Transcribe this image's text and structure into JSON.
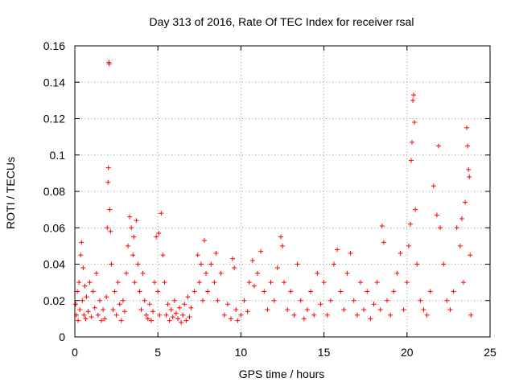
{
  "chart_data": {
    "type": "scatter",
    "title": "Day 313 of 2016, Rate Of TEC Index for receiver rsal",
    "xlabel": "GPS time / hours",
    "ylabel": "ROTI / TECUs",
    "xlim": [
      0,
      25
    ],
    "ylim": [
      0,
      0.16
    ],
    "xticks": [
      0,
      5,
      10,
      15,
      20,
      25
    ],
    "xtick_labels": [
      "0",
      "5",
      "10",
      "15",
      "20",
      "25"
    ],
    "yticks": [
      0,
      0.02,
      0.04,
      0.06,
      0.08,
      0.1,
      0.12,
      0.14,
      0.16
    ],
    "ytick_labels": [
      "0",
      "0.02",
      "0.04",
      "0.06",
      "0.08",
      "0.1",
      "0.12",
      "0.14",
      "0.16"
    ],
    "grid": true,
    "marker": "+",
    "color": "#ff0000",
    "series": [
      {
        "name": "ROTI",
        "points": [
          [
            0.05,
            0.018
          ],
          [
            0.1,
            0.012
          ],
          [
            0.15,
            0.025
          ],
          [
            0.2,
            0.009
          ],
          [
            0.25,
            0.03
          ],
          [
            0.3,
            0.015
          ],
          [
            0.35,
            0.045
          ],
          [
            0.4,
            0.052
          ],
          [
            0.45,
            0.02
          ],
          [
            0.5,
            0.038
          ],
          [
            0.55,
            0.012
          ],
          [
            0.6,
            0.028
          ],
          [
            0.65,
            0.01
          ],
          [
            0.7,
            0.022
          ],
          [
            0.8,
            0.014
          ],
          [
            0.9,
            0.03
          ],
          [
            1.0,
            0.011
          ],
          [
            1.1,
            0.025
          ],
          [
            1.2,
            0.016
          ],
          [
            1.3,
            0.035
          ],
          [
            1.4,
            0.012
          ],
          [
            1.5,
            0.02
          ],
          [
            1.6,
            0.009
          ],
          [
            1.7,
            0.015
          ],
          [
            1.8,
            0.01
          ],
          [
            1.9,
            0.022
          ],
          [
            1.95,
            0.06
          ],
          [
            2.0,
            0.085
          ],
          [
            2.02,
            0.093
          ],
          [
            2.05,
            0.151
          ],
          [
            2.07,
            0.15
          ],
          [
            2.1,
            0.07
          ],
          [
            2.15,
            0.058
          ],
          [
            2.2,
            0.04
          ],
          [
            2.3,
            0.015
          ],
          [
            2.4,
            0.025
          ],
          [
            2.5,
            0.012
          ],
          [
            2.6,
            0.03
          ],
          [
            2.7,
            0.018
          ],
          [
            2.8,
            0.009
          ],
          [
            2.9,
            0.02
          ],
          [
            3.0,
            0.014
          ],
          [
            3.1,
            0.035
          ],
          [
            3.2,
            0.05
          ],
          [
            3.3,
            0.066
          ],
          [
            3.4,
            0.06
          ],
          [
            3.5,
            0.045
          ],
          [
            3.55,
            0.055
          ],
          [
            3.6,
            0.03
          ],
          [
            3.7,
            0.064
          ],
          [
            3.8,
            0.04
          ],
          [
            3.9,
            0.025
          ],
          [
            4.0,
            0.015
          ],
          [
            4.1,
            0.035
          ],
          [
            4.2,
            0.02
          ],
          [
            4.3,
            0.012
          ],
          [
            4.4,
            0.01
          ],
          [
            4.5,
            0.018
          ],
          [
            4.6,
            0.009
          ],
          [
            4.7,
            0.014
          ],
          [
            4.8,
            0.03
          ],
          [
            4.9,
            0.055
          ],
          [
            5.0,
            0.025
          ],
          [
            5.05,
            0.057
          ],
          [
            5.1,
            0.012
          ],
          [
            5.2,
            0.068
          ],
          [
            5.3,
            0.045
          ],
          [
            5.4,
            0.03
          ],
          [
            5.5,
            0.012
          ],
          [
            5.6,
            0.018
          ],
          [
            5.7,
            0.009
          ],
          [
            5.8,
            0.015
          ],
          [
            5.9,
            0.011
          ],
          [
            6.0,
            0.02
          ],
          [
            6.1,
            0.013
          ],
          [
            6.2,
            0.01
          ],
          [
            6.3,
            0.016
          ],
          [
            6.4,
            0.008
          ],
          [
            6.5,
            0.012
          ],
          [
            6.6,
            0.018
          ],
          [
            6.7,
            0.009
          ],
          [
            6.8,
            0.022
          ],
          [
            6.9,
            0.011
          ],
          [
            7.0,
            0.016
          ],
          [
            7.2,
            0.025
          ],
          [
            7.4,
            0.045
          ],
          [
            7.5,
            0.03
          ],
          [
            7.6,
            0.04
          ],
          [
            7.7,
            0.02
          ],
          [
            7.8,
            0.053
          ],
          [
            7.9,
            0.035
          ],
          [
            8.0,
            0.025
          ],
          [
            8.2,
            0.04
          ],
          [
            8.4,
            0.03
          ],
          [
            8.5,
            0.046
          ],
          [
            8.6,
            0.02
          ],
          [
            8.8,
            0.035
          ],
          [
            9.0,
            0.012
          ],
          [
            9.2,
            0.018
          ],
          [
            9.4,
            0.01
          ],
          [
            9.5,
            0.043
          ],
          [
            9.6,
            0.038
          ],
          [
            9.7,
            0.015
          ],
          [
            9.8,
            0.009
          ],
          [
            10.0,
            0.012
          ],
          [
            10.2,
            0.02
          ],
          [
            10.4,
            0.014
          ],
          [
            10.5,
            0.03
          ],
          [
            10.7,
            0.042
          ],
          [
            10.8,
            0.028
          ],
          [
            11.0,
            0.035
          ],
          [
            11.2,
            0.047
          ],
          [
            11.4,
            0.025
          ],
          [
            11.6,
            0.015
          ],
          [
            11.8,
            0.03
          ],
          [
            12.0,
            0.02
          ],
          [
            12.2,
            0.038
          ],
          [
            12.4,
            0.055
          ],
          [
            12.5,
            0.05
          ],
          [
            12.6,
            0.03
          ],
          [
            12.8,
            0.015
          ],
          [
            13.0,
            0.025
          ],
          [
            13.2,
            0.012
          ],
          [
            13.4,
            0.04
          ],
          [
            13.6,
            0.02
          ],
          [
            13.8,
            0.01
          ],
          [
            14.0,
            0.015
          ],
          [
            14.2,
            0.025
          ],
          [
            14.4,
            0.012
          ],
          [
            14.6,
            0.035
          ],
          [
            14.8,
            0.018
          ],
          [
            15.0,
            0.03
          ],
          [
            15.2,
            0.012
          ],
          [
            15.4,
            0.02
          ],
          [
            15.6,
            0.04
          ],
          [
            15.8,
            0.048
          ],
          [
            16.0,
            0.025
          ],
          [
            16.2,
            0.015
          ],
          [
            16.4,
            0.035
          ],
          [
            16.6,
            0.046
          ],
          [
            16.8,
            0.02
          ],
          [
            17.0,
            0.012
          ],
          [
            17.2,
            0.03
          ],
          [
            17.4,
            0.015
          ],
          [
            17.6,
            0.025
          ],
          [
            17.8,
            0.01
          ],
          [
            18.0,
            0.018
          ],
          [
            18.2,
            0.03
          ],
          [
            18.4,
            0.015
          ],
          [
            18.5,
            0.061
          ],
          [
            18.6,
            0.052
          ],
          [
            18.8,
            0.02
          ],
          [
            19.0,
            0.012
          ],
          [
            19.2,
            0.025
          ],
          [
            19.4,
            0.035
          ],
          [
            19.6,
            0.046
          ],
          [
            19.8,
            0.015
          ],
          [
            20.0,
            0.03
          ],
          [
            20.1,
            0.05
          ],
          [
            20.2,
            0.062
          ],
          [
            20.25,
            0.097
          ],
          [
            20.3,
            0.107
          ],
          [
            20.35,
            0.13
          ],
          [
            20.4,
            0.133
          ],
          [
            20.45,
            0.118
          ],
          [
            20.5,
            0.07
          ],
          [
            20.6,
            0.04
          ],
          [
            20.8,
            0.02
          ],
          [
            21.0,
            0.015
          ],
          [
            21.2,
            0.012
          ],
          [
            21.4,
            0.025
          ],
          [
            21.6,
            0.083
          ],
          [
            21.8,
            0.067
          ],
          [
            21.9,
            0.105
          ],
          [
            22.0,
            0.06
          ],
          [
            22.2,
            0.04
          ],
          [
            22.4,
            0.02
          ],
          [
            22.6,
            0.015
          ],
          [
            22.8,
            0.025
          ],
          [
            23.0,
            0.06
          ],
          [
            23.2,
            0.05
          ],
          [
            23.3,
            0.065
          ],
          [
            23.4,
            0.03
          ],
          [
            23.5,
            0.074
          ],
          [
            23.6,
            0.115
          ],
          [
            23.65,
            0.105
          ],
          [
            23.7,
            0.092
          ],
          [
            23.75,
            0.088
          ],
          [
            23.8,
            0.045
          ],
          [
            23.85,
            0.012
          ]
        ]
      }
    ]
  }
}
